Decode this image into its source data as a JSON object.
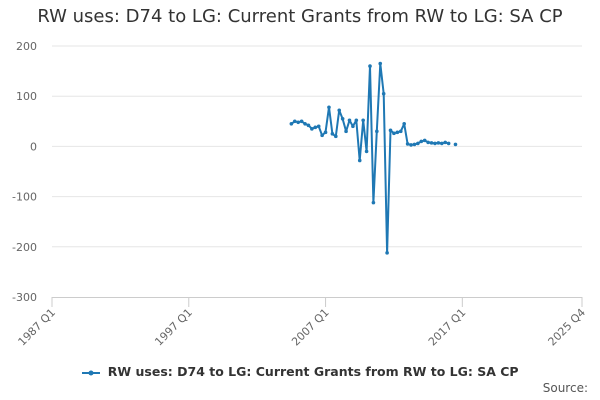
{
  "chart_data": {
    "type": "line",
    "title": "RW uses: D74 to LG: Current Grants from RW to LG: SA CP",
    "xlabel": "",
    "ylabel": "",
    "ylim": [
      -300,
      200
    ],
    "y_ticks": [
      "200",
      "100",
      "0",
      "-100",
      "-200",
      "-300"
    ],
    "x_ticks": [
      "1987 Q1",
      "1997 Q1",
      "2007 Q1",
      "2017 Q1",
      "2025 Q4"
    ],
    "grid": "horizontal",
    "legend_position": "bottom",
    "color": "#1f78b4",
    "series": [
      {
        "name": "RW uses: D74 to LG: Current Grants from RW to LG: SA CP",
        "x": [
          "2004 Q3",
          "2004 Q4",
          "2005 Q1",
          "2005 Q2",
          "2005 Q3",
          "2005 Q4",
          "2006 Q1",
          "2006 Q2",
          "2006 Q3",
          "2006 Q4",
          "2007 Q1",
          "2007 Q2",
          "2007 Q3",
          "2007 Q4",
          "2008 Q1",
          "2008 Q2",
          "2008 Q3",
          "2008 Q4",
          "2009 Q1",
          "2009 Q2",
          "2009 Q3",
          "2009 Q4",
          "2010 Q1",
          "2010 Q2",
          "2010 Q3",
          "2010 Q4",
          "2011 Q1",
          "2011 Q2",
          "2011 Q3",
          "2011 Q4",
          "2012 Q1",
          "2012 Q2",
          "2012 Q3",
          "2012 Q4",
          "2013 Q1",
          "2013 Q2",
          "2013 Q3",
          "2013 Q4",
          "2014 Q1",
          "2014 Q2",
          "2014 Q3",
          "2014 Q4",
          "2015 Q1",
          "2015 Q2",
          "2015 Q3",
          "2015 Q4",
          "2016 Q1",
          "2016 Q2",
          "2016 Q3"
        ],
        "values": [
          45,
          50,
          48,
          50,
          45,
          42,
          35,
          38,
          40,
          22,
          28,
          78,
          25,
          20,
          72,
          55,
          30,
          52,
          40,
          52,
          -28,
          52,
          -10,
          160,
          -112,
          30,
          165,
          105,
          -212,
          32,
          26,
          28,
          30,
          45,
          5,
          3,
          4,
          6,
          10,
          12,
          8,
          7,
          6,
          7,
          6,
          8,
          6,
          null,
          4
        ]
      }
    ]
  },
  "legend": {
    "label": "RW uses: D74 to LG: Current Grants from RW to LG: SA CP"
  },
  "source": {
    "label": "Source:"
  }
}
